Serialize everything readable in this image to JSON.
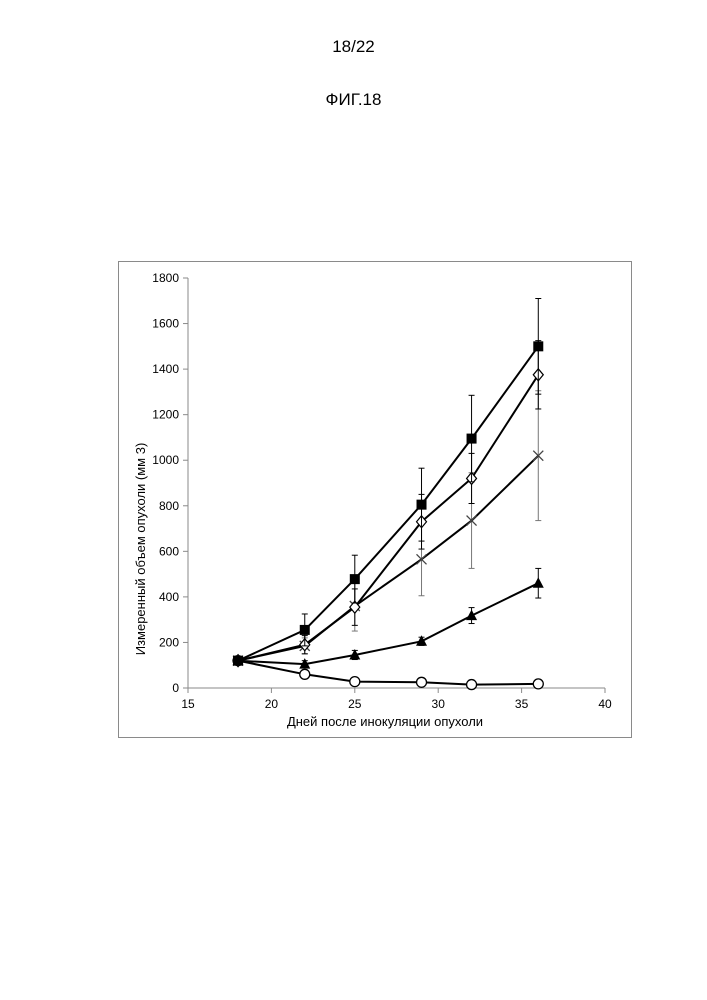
{
  "page": {
    "page_number": "18/22",
    "figure_label": "ФИГ.18"
  },
  "chart_data": {
    "type": "line",
    "title": "",
    "xlabel": "Дней после инокуляции опухоли",
    "ylabel": "Измеренный объем опухоли (мм 3)",
    "xlim": [
      15,
      40
    ],
    "ylim": [
      0,
      1800
    ],
    "x_ticks": [
      15,
      20,
      25,
      30,
      35,
      40
    ],
    "y_ticks": [
      0,
      200,
      400,
      600,
      800,
      1000,
      1200,
      1400,
      1600,
      1800
    ],
    "grid": false,
    "legend": "none",
    "series": [
      {
        "marker": "filled-square",
        "color": "#000000",
        "x": [
          18,
          22,
          25,
          29,
          32,
          36
        ],
        "values": [
          120,
          255,
          478,
          805,
          1095,
          1500
        ],
        "error": [
          10,
          70,
          105,
          160,
          190,
          210
        ]
      },
      {
        "marker": "open-diamond",
        "color": "#000000",
        "x": [
          18,
          22,
          25,
          29,
          32,
          36
        ],
        "values": [
          120,
          190,
          355,
          730,
          920,
          1375
        ],
        "error": [
          10,
          40,
          80,
          120,
          110,
          150
        ]
      },
      {
        "marker": "cross",
        "color": "#555555",
        "x": [
          18,
          22,
          25,
          29,
          32,
          36
        ],
        "values": [
          120,
          185,
          360,
          565,
          735,
          1020
        ],
        "error": [
          10,
          35,
          110,
          160,
          210,
          285
        ]
      },
      {
        "marker": "filled-triangle",
        "color": "#000000",
        "x": [
          18,
          22,
          25,
          29,
          32,
          36
        ],
        "values": [
          120,
          105,
          145,
          205,
          318,
          460
        ],
        "error": [
          8,
          15,
          20,
          18,
          35,
          65
        ]
      },
      {
        "marker": "open-circle",
        "color": "#000000",
        "x": [
          18,
          22,
          25,
          29,
          32,
          36
        ],
        "values": [
          120,
          60,
          28,
          25,
          15,
          18
        ],
        "error": [
          5,
          5,
          4,
          4,
          3,
          3
        ]
      }
    ]
  }
}
